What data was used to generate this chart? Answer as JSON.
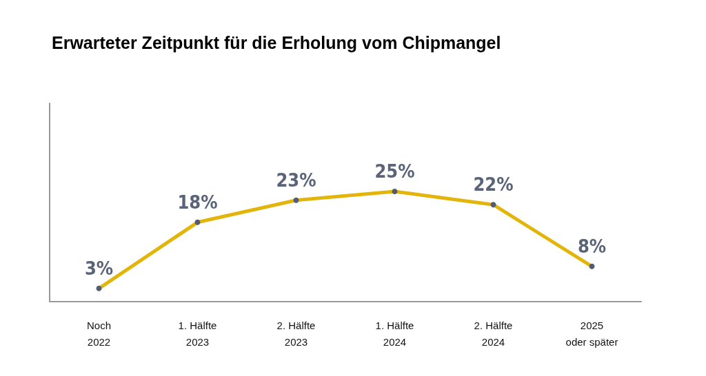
{
  "chart_data": {
    "type": "line",
    "title": "Erwarteter Zeitpunkt für die Erholung vom Chipmangel",
    "categories": [
      "Noch\n2022",
      "1. Hälfte\n2023",
      "2. Hälfte\n2023",
      "1. Hälfte\n2024",
      "2. Hälfte\n2024",
      "2025\noder später"
    ],
    "series": [
      {
        "color": "#e3b50b",
        "colors": [
          "#525d75",
          "#525d75",
          "#525d75",
          "#525d75",
          "#525d75",
          "#525d75"
        ],
        "values": [
          3,
          18,
          23,
          25,
          22,
          8
        ],
        "value_labels": [
          "3%",
          "18%",
          "23%",
          "25%",
          "22%",
          "8%"
        ]
      }
    ],
    "ylim": [
      0,
      45
    ],
    "grid": false,
    "marker": "circle",
    "line_style": "solid",
    "tick_labels": "x"
  }
}
